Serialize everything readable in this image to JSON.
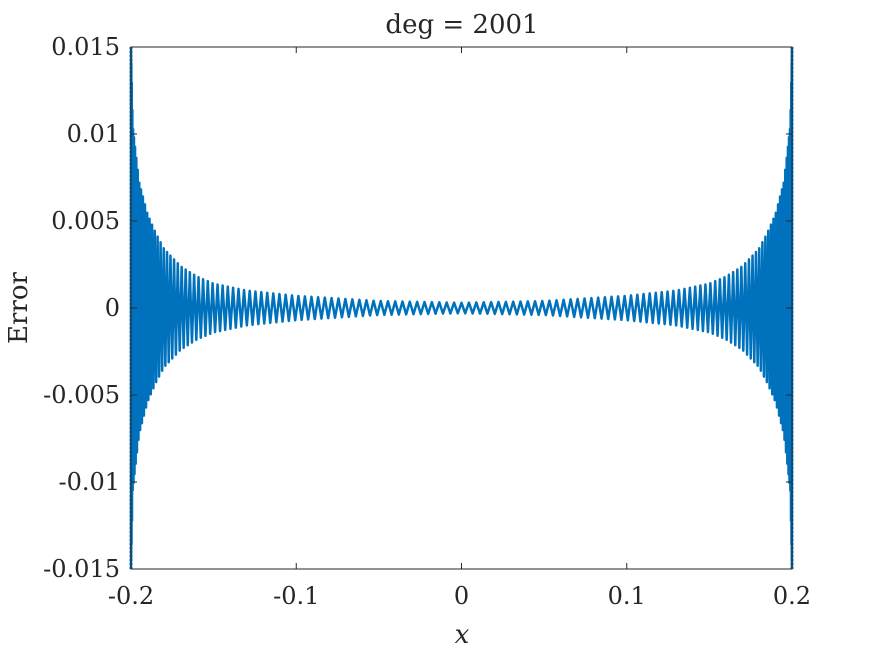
{
  "chart_data": {
    "type": "line",
    "title": "deg = 2001",
    "xlabel": "x",
    "ylabel": "Error",
    "xlim": [
      -0.2,
      0.2
    ],
    "ylim": [
      -0.015,
      0.015
    ],
    "x_ticks": [
      -0.2,
      -0.1,
      0,
      0.1,
      0.2
    ],
    "x_tick_labels": [
      "-0.2",
      "-0.1",
      "0",
      "0.1",
      "0.2"
    ],
    "y_ticks": [
      -0.015,
      -0.01,
      -0.005,
      0,
      0.005,
      0.01,
      0.015
    ],
    "y_tick_labels": [
      "-0.015",
      "-0.01",
      "-0.005",
      "0",
      "0.005",
      "0.01",
      "0.015"
    ],
    "grid": false,
    "series": [
      {
        "color": "#0072bd",
        "envelope": {
          "x": [
            -0.2,
            -0.199,
            -0.197,
            -0.195,
            -0.19,
            -0.185,
            -0.18,
            -0.17,
            -0.16,
            -0.15,
            -0.13,
            -0.1,
            -0.05,
            0,
            0.05,
            0.1,
            0.13,
            0.15,
            0.16,
            0.17,
            0.18,
            0.185,
            0.19,
            0.195,
            0.197,
            0.199,
            0.2
          ],
          "amplitude": [
            0.015,
            0.0105,
            0.0088,
            0.0072,
            0.0054,
            0.0043,
            0.0034,
            0.0024,
            0.0018,
            0.0014,
            0.001,
            0.0007,
            0.0004,
            0.0003,
            0.0004,
            0.0007,
            0.001,
            0.0014,
            0.0018,
            0.0024,
            0.0034,
            0.0043,
            0.0054,
            0.0072,
            0.0088,
            0.0105,
            0.015
          ]
        },
        "oscillations": 140
      }
    ]
  }
}
